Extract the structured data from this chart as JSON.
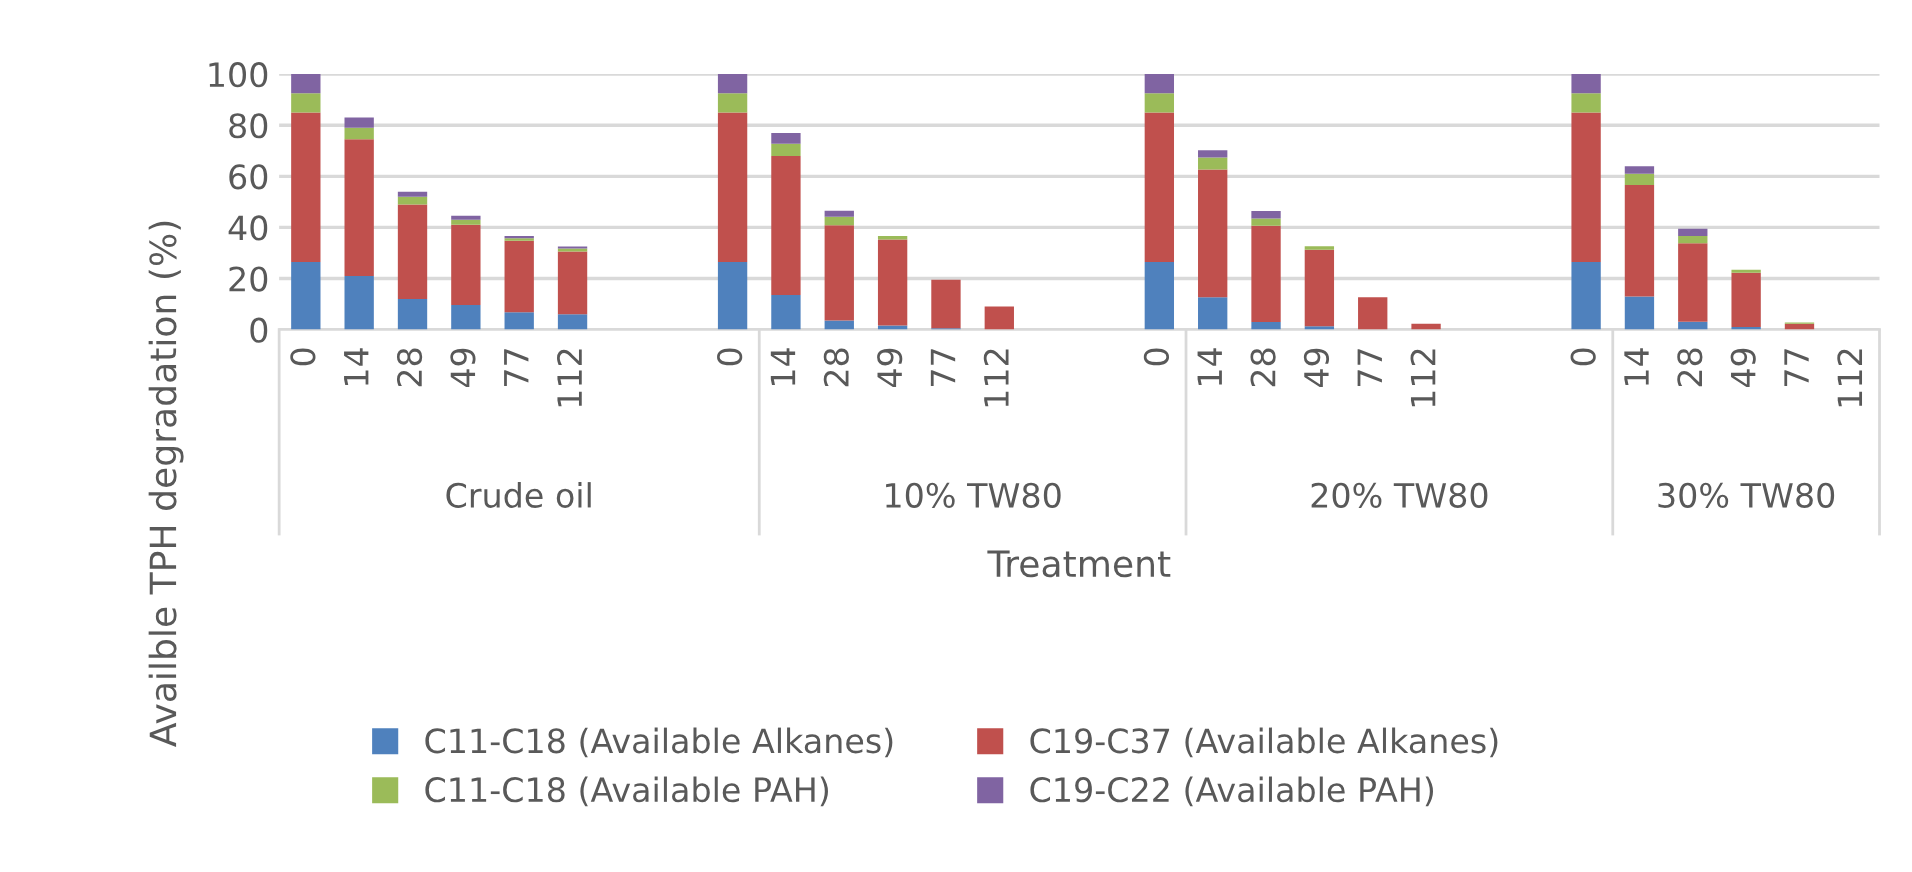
{
  "chart_data": {
    "type": "bar",
    "stacked": true,
    "xlabel": "Treatment",
    "ylabel": "Availble TPH degradation (%)",
    "categories": [
      "0",
      "14",
      "28",
      "49",
      "77",
      "112",
      null,
      null,
      "0",
      "14",
      "28",
      "49",
      "77",
      "112",
      null,
      null,
      "0",
      "14",
      "28",
      "49",
      "77",
      "112",
      null,
      null,
      "0",
      "14",
      "28",
      "49",
      "77",
      "112"
    ],
    "series": [
      {
        "name": "C11-C18 (Available Alkanes)",
        "color": "#4f81bd",
        "values": [
          26.5,
          21,
          12,
          9.6,
          6.8,
          6,
          null,
          null,
          26.5,
          13.5,
          3.6,
          1.6,
          0.5,
          0,
          null,
          null,
          26.5,
          12.7,
          3,
          1.3,
          null,
          0,
          null,
          null,
          26.5,
          13,
          3.1,
          1,
          null,
          0
        ]
      },
      {
        "name": "C19-C37 (Available Alkanes)",
        "color": "#c0504d",
        "values": [
          58.5,
          53.5,
          37,
          31.4,
          28,
          24.6,
          null,
          null,
          58.5,
          54.5,
          37.2,
          33.7,
          19,
          9,
          null,
          null,
          58.5,
          50,
          37.7,
          30,
          12.7,
          2.3,
          null,
          null,
          58.5,
          43.6,
          30.7,
          21.3,
          2.3,
          0
        ]
      },
      {
        "name": "C11-C18 (Available PAH)",
        "color": "#9bbb59",
        "values": [
          7.5,
          4.5,
          3,
          2,
          1,
          1.1,
          null,
          null,
          7.5,
          4.7,
          3.4,
          1.3,
          0,
          0,
          null,
          null,
          7.5,
          4.7,
          2.8,
          1.3,
          0,
          0,
          null,
          null,
          7.5,
          4.4,
          2.8,
          1.1,
          0.5,
          0
        ]
      },
      {
        "name": "C19-C22 (Available PAH)",
        "color": "#8064a2",
        "values": [
          7.5,
          4,
          2,
          1.6,
          0.8,
          0.8,
          null,
          null,
          7.5,
          4.3,
          2.3,
          0,
          0,
          0,
          null,
          null,
          7.5,
          2.8,
          2.9,
          0,
          0,
          0,
          null,
          null,
          7.5,
          2.9,
          2.9,
          0,
          0,
          0
        ]
      }
    ],
    "annotations": [
      "Crude oil",
      "10% TW80",
      "20% TW80",
      "30% TW80"
    ],
    "ylim": [
      0,
      100
    ],
    "yticks": [
      0,
      20,
      40,
      60,
      80,
      100
    ],
    "grid": "y",
    "legend": "bottom"
  }
}
